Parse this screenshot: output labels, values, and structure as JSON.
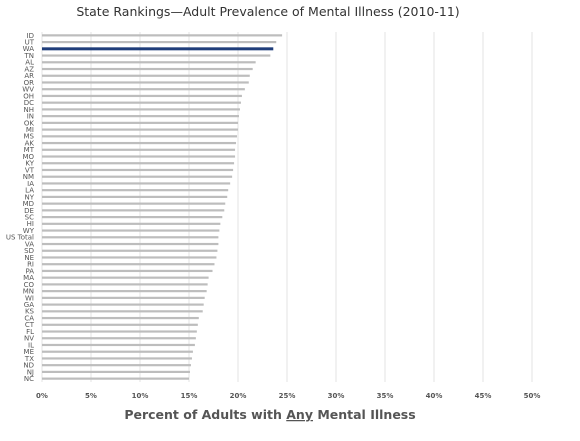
{
  "chart_data": {
    "type": "bar",
    "orientation": "horizontal",
    "title": "State Rankings—Adult Prevalence of Mental Illness (2010-11)",
    "xlabel_parts": [
      "Percent of Adults with ",
      "Any",
      " Mental Illness"
    ],
    "xlim": [
      0,
      50
    ],
    "x_ticks": [
      "0%",
      "5%",
      "10%",
      "15%",
      "20%",
      "25%",
      "30%",
      "35%",
      "40%",
      "45%",
      "50%"
    ],
    "grid": true,
    "highlight_category": "WA",
    "colors": {
      "bar": "#bdbdbd",
      "highlight": "#1f3d7a",
      "grid": "#e3e3e3"
    },
    "categories": [
      "ID",
      "UT",
      "WA",
      "TN",
      "AL",
      "AZ",
      "AR",
      "OR",
      "WV",
      "OH",
      "DC",
      "NH",
      "IN",
      "OK",
      "MI",
      "MS",
      "AK",
      "MT",
      "MO",
      "KY",
      "VT",
      "NM",
      "IA",
      "LA",
      "NY",
      "MD",
      "DE",
      "SC",
      "HI",
      "WY",
      "US Total",
      "VA",
      "SD",
      "NE",
      "RI",
      "PA",
      "MA",
      "CO",
      "MN",
      "WI",
      "GA",
      "KS",
      "CA",
      "CT",
      "FL",
      "NV",
      "IL",
      "ME",
      "TX",
      "ND",
      "NJ",
      "NC"
    ],
    "values": [
      24.5,
      23.9,
      23.6,
      23.3,
      21.8,
      21.5,
      21.2,
      21.1,
      20.7,
      20.4,
      20.3,
      20.2,
      20.1,
      20.0,
      20.0,
      19.9,
      19.8,
      19.7,
      19.7,
      19.6,
      19.5,
      19.4,
      19.2,
      19.0,
      18.9,
      18.7,
      18.6,
      18.4,
      18.2,
      18.1,
      18.0,
      18.0,
      17.9,
      17.8,
      17.6,
      17.4,
      17.0,
      16.9,
      16.8,
      16.6,
      16.5,
      16.4,
      16.0,
      15.9,
      15.8,
      15.7,
      15.6,
      15.4,
      15.3,
      15.2,
      15.1,
      15.0
    ]
  }
}
